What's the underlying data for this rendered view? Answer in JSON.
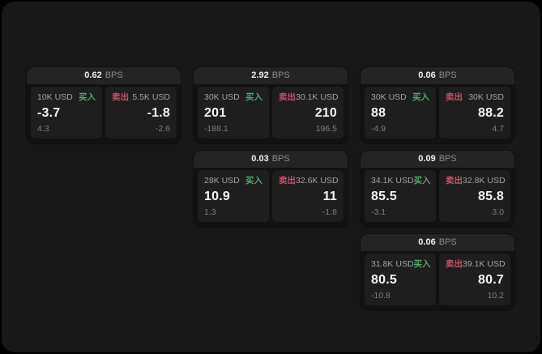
{
  "app": {
    "background": "#000000",
    "surface": "#181818"
  },
  "labels": {
    "bps_unit": "BPS",
    "buy": "买入",
    "sell": "卖出"
  },
  "colors": {
    "buy": "#4fa96c",
    "sell": "#c9516b",
    "value_text": "#f5f5f5",
    "muted_text": "#7d7d7e"
  },
  "cards": [
    {
      "bps": "0.62",
      "buy": {
        "amount": "10K USD",
        "value": "-3.7",
        "delta": "4.3"
      },
      "sell": {
        "amount": "5.5K USD",
        "value": "-1.8",
        "delta": "-2.6"
      }
    },
    {
      "bps": "2.92",
      "buy": {
        "amount": "30K USD",
        "value": "201",
        "delta": "-188.1"
      },
      "sell": {
        "amount": "30.1K USD",
        "value": "210",
        "delta": "196.5"
      }
    },
    {
      "bps": "0.06",
      "buy": {
        "amount": "30K USD",
        "value": "88",
        "delta": "-4.9"
      },
      "sell": {
        "amount": "30K USD",
        "value": "88.2",
        "delta": "4.7"
      }
    },
    {
      "bps": "0.03",
      "buy": {
        "amount": "28K USD",
        "value": "10.9",
        "delta": "1.3"
      },
      "sell": {
        "amount": "32.6K USD",
        "value": "11",
        "delta": "-1.8"
      }
    },
    {
      "bps": "0.09",
      "buy": {
        "amount": "34.1K USD",
        "value": "85.5",
        "delta": "-3.1"
      },
      "sell": {
        "amount": "32.8K USD",
        "value": "85.8",
        "delta": "3.0"
      }
    },
    {
      "bps": "0.06",
      "buy": {
        "amount": "31.8K USD",
        "value": "80.5",
        "delta": "-10.8"
      },
      "sell": {
        "amount": "39.1K USD",
        "value": "80.7",
        "delta": "10.2"
      }
    }
  ]
}
